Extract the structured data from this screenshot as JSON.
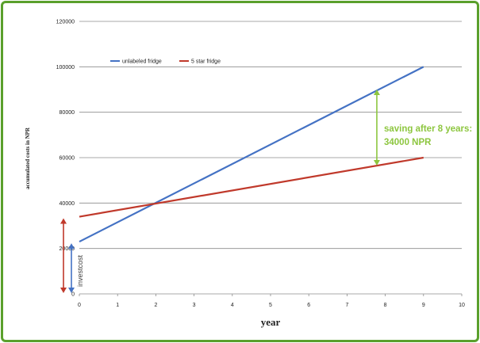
{
  "colors": {
    "frame": "#5aa02c",
    "grid": "#8c8c8c",
    "unlabeled": "#4472c4",
    "fivestar": "#c0392b",
    "annotation": "#8dc63f"
  },
  "chart_data": {
    "type": "line",
    "xlabel": "year",
    "ylabel": "accumulated costs in NPR",
    "xlim": [
      0,
      10
    ],
    "ylim": [
      0,
      120000
    ],
    "xticks": [
      "0",
      "1",
      "2",
      "3",
      "4",
      "5",
      "6",
      "7",
      "8",
      "9",
      "10"
    ],
    "yticks": [
      "0",
      "20000",
      "40000",
      "60000",
      "80000",
      "100000",
      "120000"
    ],
    "grid": "horizontal",
    "legend_position": "top-left",
    "series": [
      {
        "name": "unlabeled fridge",
        "color": "#4472c4",
        "x": [
          0,
          9
        ],
        "y": [
          23000,
          100000
        ]
      },
      {
        "name": "5 star fridge",
        "color": "#c0392b",
        "x": [
          0,
          9
        ],
        "y": [
          34000,
          60000
        ]
      }
    ],
    "annotations": {
      "saving": {
        "line1": "saving after 8 years:",
        "line2": "34000 NPR",
        "x": 7.8,
        "y_from": 56500,
        "y_to": 90000
      },
      "investcost": {
        "label": "investcost",
        "y_to_unlabeled": 23000,
        "y_to_fivestar": 34000
      }
    }
  }
}
